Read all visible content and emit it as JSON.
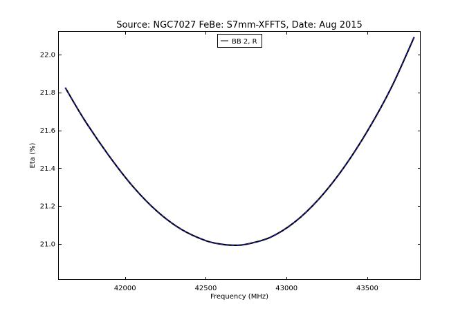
{
  "chart_data": {
    "type": "line",
    "title": "Source: NGC7027 FeBe: S7mm-XFFTS, Date: Aug 2015",
    "xlabel": "Frequency (MHz)",
    "ylabel": "Eta (%)",
    "xlim": [
      41590,
      43830
    ],
    "ylim": [
      20.81,
      22.12
    ],
    "xticks": [
      42000,
      42500,
      43000,
      43500
    ],
    "xtick_labels": [
      "42000",
      "42500",
      "43000",
      "43500"
    ],
    "yticks": [
      21.0,
      21.2,
      21.4,
      21.6,
      21.8,
      22.0
    ],
    "ytick_labels": [
      "21.0",
      "21.2",
      "21.4",
      "21.6",
      "21.8",
      "22.0"
    ],
    "legend": {
      "placement": "top-center",
      "entries": [
        "BB 2, R"
      ]
    },
    "grid": false,
    "series": [
      {
        "name": "BB 2, R",
        "color": "#000000",
        "overlay_color": "#1f1fb4",
        "style": "solid with blue dashed overlay",
        "x": [
          41630,
          41750,
          41900,
          42050,
          42200,
          42350,
          42500,
          42600,
          42680,
          42750,
          42900,
          43050,
          43200,
          43350,
          43500,
          43650,
          43790
        ],
        "y": [
          21.825,
          21.653,
          21.466,
          21.302,
          21.171,
          21.076,
          21.017,
          20.998,
          20.993,
          20.998,
          21.035,
          21.115,
          21.237,
          21.398,
          21.595,
          21.828,
          22.092
        ]
      }
    ]
  }
}
